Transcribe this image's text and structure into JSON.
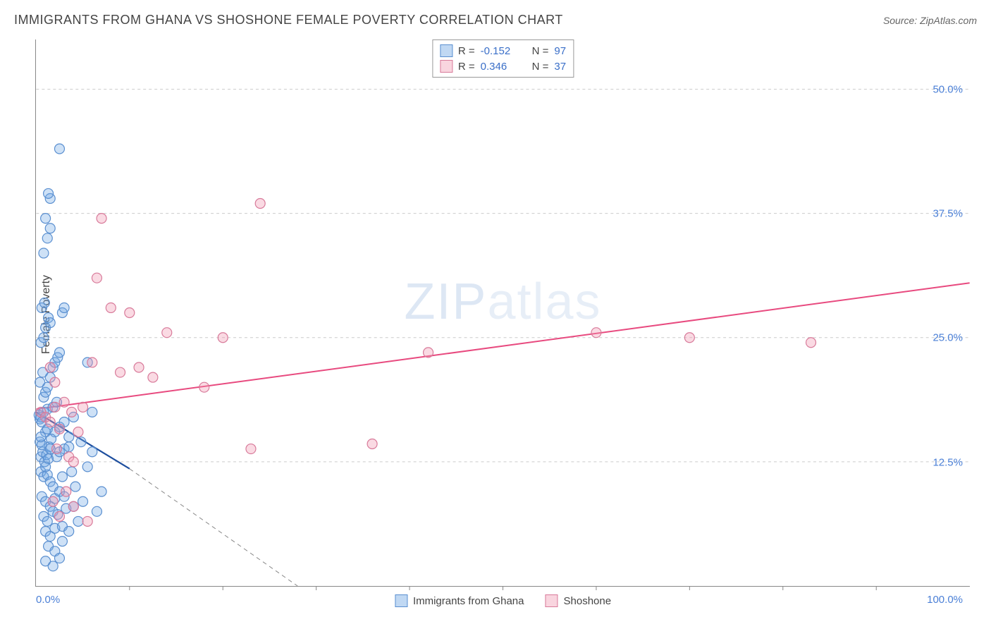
{
  "title": "IMMIGRANTS FROM GHANA VS SHOSHONE FEMALE POVERTY CORRELATION CHART",
  "source_label": "Source: ZipAtlas.com",
  "ylabel": "Female Poverty",
  "watermark": {
    "part1": "ZIP",
    "part2": "atlas"
  },
  "chart": {
    "type": "scatter",
    "xlim": [
      0,
      100
    ],
    "ylim": [
      0,
      55
    ],
    "x_tick_labels": {
      "min": "0.0%",
      "max": "100.0%"
    },
    "y_ticks": [
      {
        "v": 12.5,
        "label": "12.5%"
      },
      {
        "v": 25.0,
        "label": "25.0%"
      },
      {
        "v": 37.5,
        "label": "37.5%"
      },
      {
        "v": 50.0,
        "label": "50.0%"
      }
    ],
    "x_minor_ticks": [
      10,
      20,
      30,
      40,
      50,
      60,
      70,
      80,
      90
    ],
    "grid_color": "#cccccc",
    "axis_color": "#888888",
    "tick_label_color": "#4a7fd6",
    "background_color": "#ffffff",
    "marker_radius": 7,
    "marker_stroke_width": 1.2,
    "series": [
      {
        "id": "ghana",
        "label": "Immigrants from Ghana",
        "fill": "rgba(116,169,229,0.35)",
        "stroke": "#5a8fd0",
        "R": "-0.152",
        "N": "97",
        "trend": {
          "solid": {
            "x1": 0,
            "y1": 17.5,
            "x2": 10,
            "y2": 11.8,
            "color": "#1d4e9e",
            "width": 2.2
          },
          "dashed": {
            "x1": 10,
            "y1": 11.8,
            "x2": 28,
            "y2": 0,
            "color": "#888888",
            "width": 1
          }
        },
        "points": [
          [
            0.3,
            17.2
          ],
          [
            0.4,
            16.8
          ],
          [
            0.5,
            17.0
          ],
          [
            0.6,
            16.5
          ],
          [
            0.8,
            17.5
          ],
          [
            1.0,
            15.5
          ],
          [
            1.2,
            17.8
          ],
          [
            1.4,
            14.0
          ],
          [
            0.5,
            13.0
          ],
          [
            0.7,
            13.5
          ],
          [
            0.9,
            12.5
          ],
          [
            1.1,
            13.2
          ],
          [
            1.3,
            12.8
          ],
          [
            1.5,
            13.8
          ],
          [
            0.4,
            14.5
          ],
          [
            0.6,
            14.2
          ],
          [
            0.8,
            19.0
          ],
          [
            1.0,
            19.5
          ],
          [
            1.2,
            20.0
          ],
          [
            1.5,
            21.0
          ],
          [
            1.8,
            22.0
          ],
          [
            2.0,
            22.5
          ],
          [
            2.3,
            23.0
          ],
          [
            2.5,
            23.5
          ],
          [
            0.5,
            24.5
          ],
          [
            0.8,
            25.0
          ],
          [
            1.0,
            26.0
          ],
          [
            1.3,
            27.0
          ],
          [
            1.5,
            26.5
          ],
          [
            0.6,
            28.0
          ],
          [
            0.9,
            28.5
          ],
          [
            2.8,
            27.5
          ],
          [
            3.0,
            28.0
          ],
          [
            0.5,
            11.5
          ],
          [
            0.8,
            11.0
          ],
          [
            1.2,
            11.2
          ],
          [
            1.5,
            10.5
          ],
          [
            1.8,
            10.0
          ],
          [
            2.2,
            13.0
          ],
          [
            2.5,
            13.5
          ],
          [
            3.0,
            13.8
          ],
          [
            3.5,
            14.0
          ],
          [
            0.6,
            9.0
          ],
          [
            1.0,
            8.5
          ],
          [
            1.5,
            8.0
          ],
          [
            2.0,
            8.8
          ],
          [
            2.5,
            9.5
          ],
          [
            3.0,
            9.0
          ],
          [
            0.8,
            7.0
          ],
          [
            1.2,
            6.5
          ],
          [
            1.8,
            7.5
          ],
          [
            2.3,
            7.2
          ],
          [
            3.2,
            7.8
          ],
          [
            4.0,
            8.0
          ],
          [
            1.0,
            5.5
          ],
          [
            1.5,
            5.0
          ],
          [
            2.0,
            5.8
          ],
          [
            2.8,
            6.0
          ],
          [
            3.5,
            5.5
          ],
          [
            1.3,
            4.0
          ],
          [
            2.0,
            3.5
          ],
          [
            2.8,
            4.5
          ],
          [
            1.0,
            2.5
          ],
          [
            1.8,
            2.0
          ],
          [
            2.5,
            2.8
          ],
          [
            4.5,
            6.5
          ],
          [
            5.0,
            8.5
          ],
          [
            5.5,
            12.0
          ],
          [
            6.0,
            13.5
          ],
          [
            6.5,
            7.5
          ],
          [
            7.0,
            9.5
          ],
          [
            2.0,
            15.5
          ],
          [
            2.5,
            16.0
          ],
          [
            3.0,
            16.5
          ],
          [
            3.5,
            15.0
          ],
          [
            4.0,
            17.0
          ],
          [
            1.8,
            18.0
          ],
          [
            2.2,
            18.5
          ],
          [
            0.4,
            20.5
          ],
          [
            0.7,
            21.5
          ],
          [
            5.5,
            22.5
          ],
          [
            6.0,
            17.5
          ],
          [
            1.5,
            36.0
          ],
          [
            1.2,
            35.0
          ],
          [
            1.0,
            37.0
          ],
          [
            2.5,
            44.0
          ],
          [
            0.8,
            33.5
          ],
          [
            1.5,
            39.0
          ],
          [
            1.3,
            39.5
          ],
          [
            1.2,
            15.8
          ],
          [
            1.6,
            14.8
          ],
          [
            1.0,
            12.0
          ],
          [
            0.5,
            15.0
          ],
          [
            2.8,
            11.0
          ],
          [
            3.8,
            11.5
          ],
          [
            4.2,
            10.0
          ],
          [
            4.8,
            14.5
          ]
        ]
      },
      {
        "id": "shoshone",
        "label": "Shoshone",
        "fill": "rgba(240,150,175,0.35)",
        "stroke": "#d87a9a",
        "R": "0.346",
        "N": "37",
        "trend": {
          "solid": {
            "x1": 0,
            "y1": 17.8,
            "x2": 100,
            "y2": 30.5,
            "color": "#e84a7f",
            "width": 2
          }
        },
        "points": [
          [
            0.5,
            17.5
          ],
          [
            1.0,
            17.0
          ],
          [
            1.5,
            16.5
          ],
          [
            2.0,
            18.0
          ],
          [
            2.5,
            15.8
          ],
          [
            3.0,
            18.5
          ],
          [
            2.2,
            13.8
          ],
          [
            3.5,
            13.0
          ],
          [
            4.0,
            12.5
          ],
          [
            3.8,
            17.5
          ],
          [
            5.0,
            18.0
          ],
          [
            2.0,
            20.5
          ],
          [
            4.5,
            15.5
          ],
          [
            1.8,
            8.5
          ],
          [
            2.5,
            7.0
          ],
          [
            3.2,
            9.5
          ],
          [
            4.0,
            8.0
          ],
          [
            5.5,
            6.5
          ],
          [
            1.5,
            22.0
          ],
          [
            6.0,
            22.5
          ],
          [
            8.0,
            28.0
          ],
          [
            9.0,
            21.5
          ],
          [
            10.0,
            27.5
          ],
          [
            11.0,
            22.0
          ],
          [
            12.5,
            21.0
          ],
          [
            14.0,
            25.5
          ],
          [
            18.0,
            20.0
          ],
          [
            20.0,
            25.0
          ],
          [
            23.0,
            13.8
          ],
          [
            24.0,
            38.5
          ],
          [
            36.0,
            14.3
          ],
          [
            42.0,
            23.5
          ],
          [
            60.0,
            25.5
          ],
          [
            70.0,
            25.0
          ],
          [
            83.0,
            24.5
          ],
          [
            7.0,
            37.0
          ],
          [
            6.5,
            31.0
          ]
        ]
      }
    ]
  },
  "legend_bottom": [
    {
      "swatch": "blue",
      "label": "Immigrants from Ghana"
    },
    {
      "swatch": "pink",
      "label": "Shoshone"
    }
  ]
}
